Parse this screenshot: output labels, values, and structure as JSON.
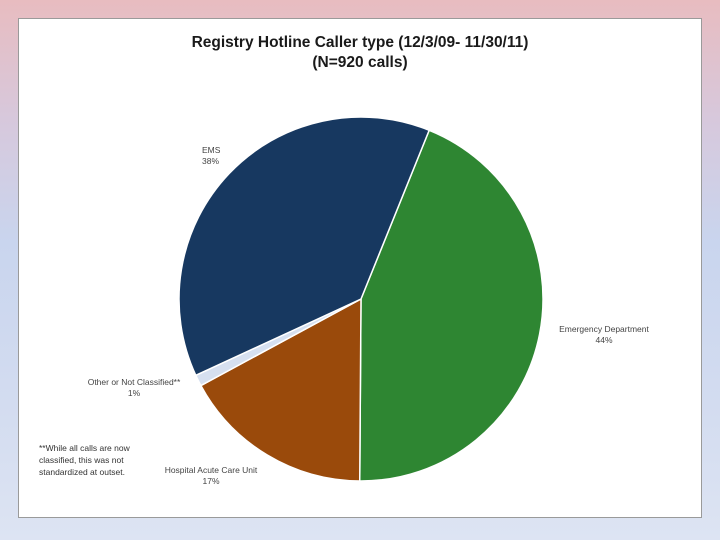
{
  "chart_data": {
    "type": "pie",
    "title": "Registry Hotline Caller type (12/3/09- 11/30/11)",
    "subtitle": "(N=920 calls)",
    "slices": [
      {
        "label": "Emergency Department",
        "value": 44,
        "display": "44%",
        "color": "#2e8632"
      },
      {
        "label": "Hospital Acute Care Unit",
        "value": 17,
        "display": "17%",
        "color": "#9a4a0b"
      },
      {
        "label": "Other or Not Classified**",
        "value": 1,
        "display": "1%",
        "color": "#d6e0f0"
      },
      {
        "label": "EMS",
        "value": 38,
        "display": "38%",
        "color": "#173860"
      }
    ],
    "footnote": "**While all calls are now classified, this was not standardized at outset."
  }
}
